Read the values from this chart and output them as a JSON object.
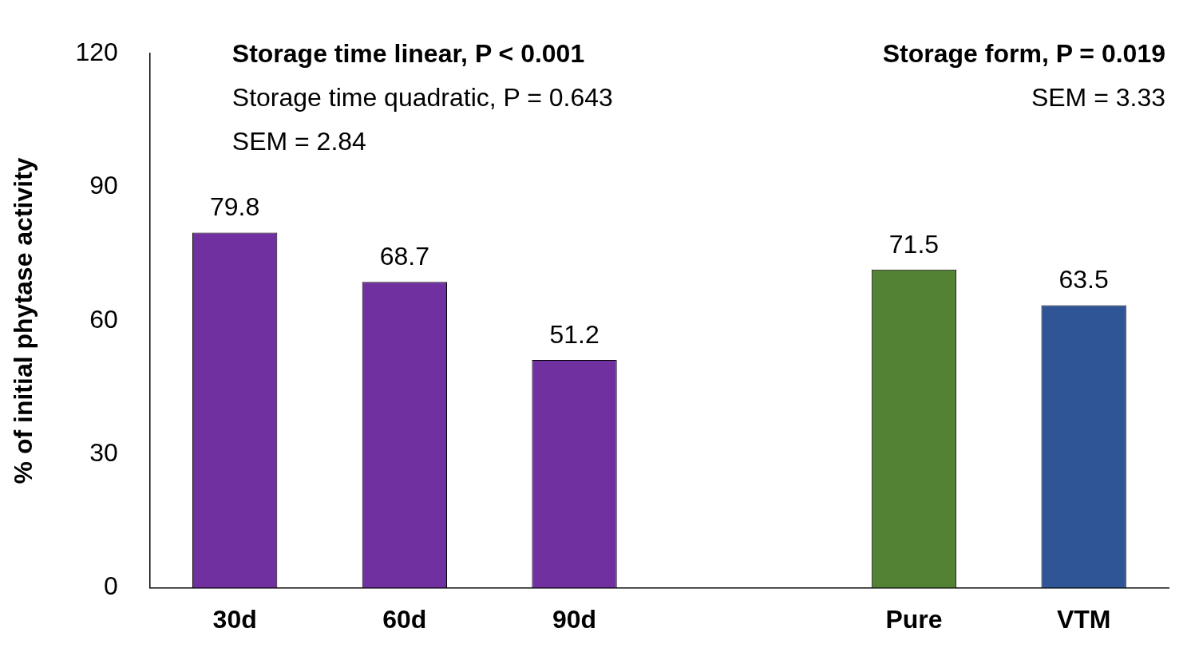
{
  "chart_data": {
    "type": "bar",
    "ylabel": "% of initial phytase activity",
    "categories": [
      "30d",
      "60d",
      "90d",
      null,
      "Pure",
      "VTM"
    ],
    "values": [
      79.8,
      68.7,
      51.2,
      null,
      71.5,
      63.5
    ],
    "colors": [
      "#7030a0",
      "#7030a0",
      "#7030a0",
      "#7030a0",
      "#548235",
      "#2f5597"
    ],
    "ylim": [
      0,
      120
    ],
    "yticks": [
      0,
      30,
      60,
      90,
      120
    ],
    "grid": false,
    "legend": false,
    "data_labels": true,
    "annotations": [
      "Storage time linear, P < 0.001",
      "Storage time quadratic, P = 0.643",
      "SEM = 2.84",
      "Storage form, P = 0.019",
      "SEM = 3.33"
    ]
  }
}
